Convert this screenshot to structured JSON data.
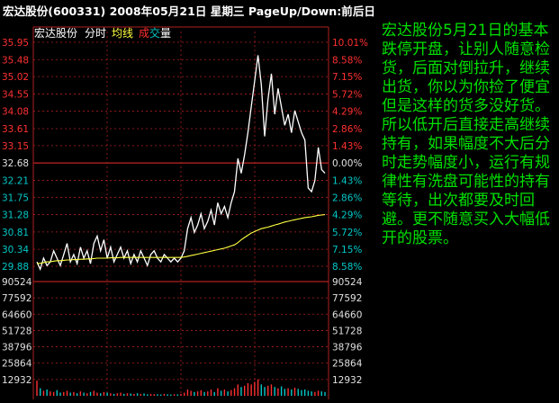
{
  "header": {
    "title": "宏达股份(600331) 2008年05月21日 星期三 PageUp/Down:前后日"
  },
  "subheader": {
    "stock_name": "宏达股份",
    "mode": "分时",
    "avg_label": "均线",
    "vol_label_1": "成",
    "vol_label_2": "交",
    "vol_label_3": "量"
  },
  "annotation": "宏达股份5月21日的基本跌停开盘，让别人随意检货，后面对倒拉升，继续出货，你以为你捡了便宜但是这样的货多没好货。所以低开后直接走高继续持有，如果幅度不大后分时走势幅度小，运行有规律性有洗盘可能性的持有等待，出次都要及时回避。更不随意买入大幅低开的股票。",
  "colors": {
    "background": "#000000",
    "up": "#ff3030",
    "down": "#00c8c8",
    "neutral": "#e0e0e0",
    "price_line": "#ffffff",
    "avg_line": "#ffff40",
    "grid": "#b02020",
    "annotation": "#00e000"
  },
  "chart_data": {
    "type": "line",
    "price_axis": {
      "ticks": [
        35.95,
        35.48,
        35.02,
        34.55,
        34.08,
        33.61,
        33.15,
        32.68,
        32.21,
        31.75,
        31.28,
        30.81,
        30.34,
        29.88
      ],
      "pct_ticks": [
        "10.01%",
        "8.58%",
        "7.15%",
        "5.72%",
        "4.29%",
        "2.86%",
        "1.43%",
        "0.00%",
        "1.43%",
        "2.86%",
        "4.29%",
        "5.72%",
        "7.15%",
        "8.58%"
      ],
      "prev_close": 32.68,
      "ylim": [
        29.88,
        35.95
      ]
    },
    "volume_axis": {
      "ticks": [
        90524,
        77592,
        64660,
        51728,
        38796,
        25864,
        12932
      ],
      "ylim": [
        0,
        90524
      ]
    },
    "series": [
      {
        "values": [
          30.0,
          29.8,
          30.1,
          29.9,
          30.0,
          30.3,
          30.1,
          29.9,
          30.2,
          30.5,
          30.0,
          30.2,
          29.95,
          30.4,
          30.1,
          30.3,
          29.95,
          30.5,
          30.7,
          30.3,
          30.6,
          30.1,
          30.4,
          30.0,
          30.2,
          30.4,
          30.1,
          30.3,
          29.95,
          30.2,
          30.0,
          30.3,
          30.1,
          29.9,
          30.2,
          30.3,
          30.1,
          30.0,
          30.2,
          30.1,
          30.0,
          30.1,
          30.0,
          30.1,
          30.3,
          30.9,
          31.2,
          30.8,
          31.0,
          31.3,
          30.9,
          31.1,
          31.4,
          31.0,
          31.6,
          31.3,
          31.5,
          31.2,
          31.6,
          31.9,
          32.8,
          32.4,
          32.9,
          33.5,
          34.2,
          34.9,
          35.6,
          34.8,
          33.4,
          34.4,
          35.1,
          34.0,
          34.7,
          34.2,
          33.7,
          34.0,
          33.5,
          34.1,
          33.8,
          33.5,
          33.3,
          32.0,
          31.9,
          32.2,
          33.1,
          32.5,
          32.4
        ]
      },
      {
        "values": [
          29.95,
          29.96,
          29.98,
          30.0,
          30.0,
          30.02,
          30.03,
          30.03,
          30.04,
          30.05,
          30.05,
          30.06,
          30.06,
          30.07,
          30.07,
          30.08,
          30.08,
          30.09,
          30.1,
          30.1,
          30.1,
          30.1,
          30.11,
          30.11,
          30.11,
          30.12,
          30.12,
          30.12,
          30.12,
          30.12,
          30.12,
          30.12,
          30.12,
          30.12,
          30.12,
          30.12,
          30.12,
          30.12,
          30.12,
          30.12,
          30.12,
          30.12,
          30.12,
          30.12,
          30.13,
          30.15,
          30.17,
          30.19,
          30.21,
          30.23,
          30.25,
          30.27,
          30.29,
          30.31,
          30.33,
          30.35,
          30.37,
          30.4,
          30.43,
          30.46,
          30.52,
          30.6,
          30.66,
          30.72,
          30.78,
          30.82,
          30.86,
          30.9,
          30.92,
          30.94,
          30.97,
          31.0,
          31.02,
          31.05,
          31.08,
          31.1,
          31.12,
          31.14,
          31.16,
          31.18,
          31.2,
          31.21,
          31.22,
          31.24,
          31.26,
          31.27,
          31.28
        ]
      }
    ],
    "volume": [
      12000,
      6000,
      4000,
      5000,
      3500,
      3000,
      4500,
      2500,
      3000,
      4000,
      2500,
      3000,
      2000,
      3500,
      2500,
      2000,
      3000,
      4000,
      2500,
      2000,
      3000,
      2500,
      2000,
      1500,
      2000,
      2500,
      1500,
      2000,
      1800,
      1500,
      2000,
      1500,
      1800,
      1200,
      1500,
      1300,
      1200,
      1000,
      1500,
      1200,
      1000,
      1300,
      1100,
      1500,
      2500,
      5000,
      4000,
      3000,
      3500,
      4500,
      3000,
      3500,
      5000,
      3000,
      6000,
      4000,
      5000,
      3500,
      4500,
      6000,
      9000,
      7000,
      8000,
      10000,
      9000,
      11000,
      13000,
      9000,
      7000,
      8000,
      9000,
      7000,
      6000,
      7500,
      5500,
      6000,
      5000,
      6500,
      5500,
      4500,
      5000,
      4000,
      3500,
      3000,
      4000,
      3500,
      3000
    ]
  }
}
